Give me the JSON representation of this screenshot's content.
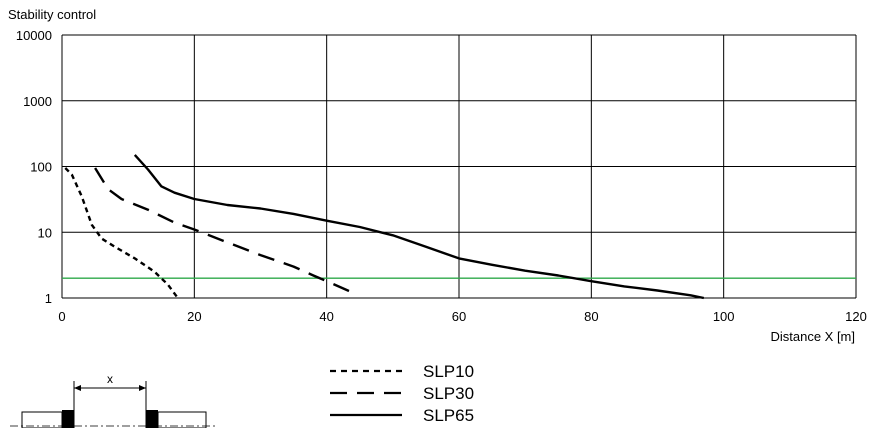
{
  "chart_data": {
    "type": "line",
    "ylabel": "Stability control",
    "xlabel": "Distance X [m]",
    "x_ticks": [
      "0",
      "20",
      "40",
      "60",
      "80",
      "100",
      "120"
    ],
    "y_ticks": [
      "1",
      "10",
      "100",
      "1000",
      "10000"
    ],
    "xlim": [
      0,
      120
    ],
    "ylim": [
      1,
      10000
    ],
    "y_scale": "log",
    "grid": true,
    "legend_position": "bottom-center",
    "reference_line": {
      "y": 2,
      "color": "#2ea84a"
    },
    "series": [
      {
        "name": "SLP10",
        "style": "dotted",
        "points": [
          [
            0.5,
            95
          ],
          [
            1.5,
            75
          ],
          [
            3,
            35
          ],
          [
            4.5,
            13
          ],
          [
            6,
            8
          ],
          [
            8,
            6
          ],
          [
            11,
            4
          ],
          [
            14,
            2.5
          ],
          [
            16,
            1.6
          ],
          [
            17.5,
            1
          ]
        ]
      },
      {
        "name": "SLP30",
        "style": "dashed",
        "points": [
          [
            5,
            95
          ],
          [
            6,
            65
          ],
          [
            7,
            45
          ],
          [
            9,
            32
          ],
          [
            13,
            22
          ],
          [
            17,
            14
          ],
          [
            20,
            11
          ],
          [
            25,
            7
          ],
          [
            30,
            4.5
          ],
          [
            35,
            3
          ],
          [
            38,
            2.2
          ],
          [
            40,
            1.8
          ],
          [
            44,
            1.2
          ]
        ]
      },
      {
        "name": "SLP65",
        "style": "solid",
        "points": [
          [
            11,
            150
          ],
          [
            13,
            90
          ],
          [
            15,
            50
          ],
          [
            17,
            40
          ],
          [
            20,
            32
          ],
          [
            25,
            26
          ],
          [
            30,
            23
          ],
          [
            35,
            19
          ],
          [
            40,
            15
          ],
          [
            45,
            12
          ],
          [
            50,
            9
          ],
          [
            55,
            6
          ],
          [
            60,
            4
          ],
          [
            65,
            3.2
          ],
          [
            70,
            2.6
          ],
          [
            75,
            2.2
          ],
          [
            80,
            1.8
          ],
          [
            85,
            1.5
          ],
          [
            90,
            1.3
          ],
          [
            95,
            1.1
          ],
          [
            97,
            1
          ]
        ]
      }
    ]
  },
  "diagram": {
    "distance_label": "x"
  }
}
